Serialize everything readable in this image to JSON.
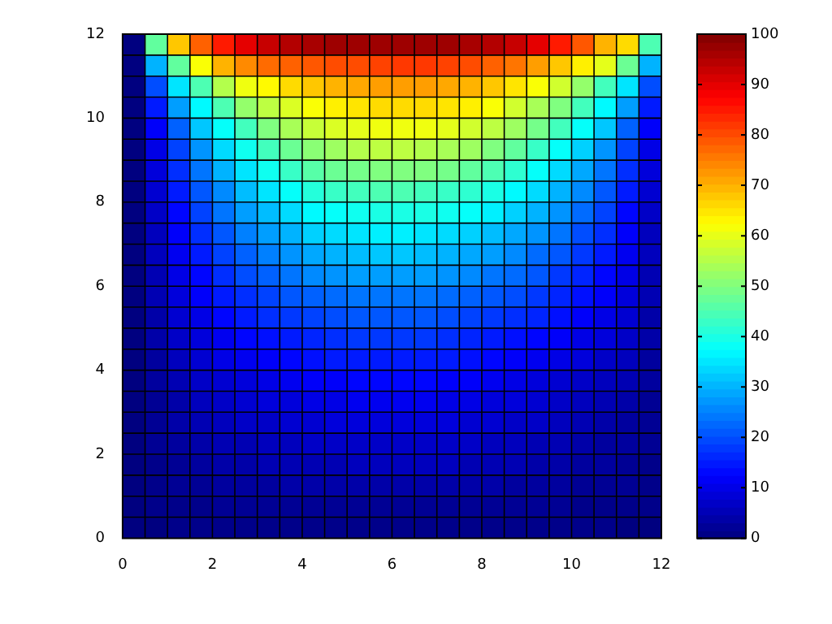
{
  "chart_data": {
    "type": "heatmap",
    "xlim": [
      0,
      12
    ],
    "xticks": [
      0,
      2,
      4,
      6,
      8,
      10,
      12
    ],
    "ylim": [
      0,
      12
    ],
    "yticks": [
      0,
      2,
      4,
      6,
      8,
      10,
      12
    ],
    "grid": true,
    "clim": [
      0,
      100
    ],
    "cticks": [
      0,
      10,
      20,
      30,
      40,
      50,
      60,
      70,
      80,
      90,
      100
    ],
    "cells": [
      [
        0,
        47,
        68,
        78,
        85,
        90,
        93,
        95,
        96,
        97,
        97,
        97,
        97,
        97,
        97,
        96,
        95,
        93,
        90,
        85,
        79,
        70,
        66,
        45
      ],
      [
        0,
        30,
        47,
        62,
        70,
        74,
        77,
        78,
        79,
        80,
        80,
        81,
        82,
        82,
        81,
        80,
        78,
        76,
        72,
        68,
        64,
        60,
        48,
        30
      ],
      [
        0,
        20,
        35,
        45,
        55,
        61,
        63,
        66,
        68,
        70,
        71,
        72,
        72,
        72,
        71,
        70,
        68,
        65,
        62,
        58,
        52,
        44,
        35,
        20
      ],
      [
        0,
        15,
        28,
        37,
        45,
        52,
        56,
        59,
        62,
        64,
        65,
        66,
        66,
        66,
        65,
        64,
        62,
        58,
        54,
        50,
        44,
        37,
        28,
        15
      ],
      [
        0,
        12,
        22,
        32,
        38,
        44,
        50,
        54,
        57,
        59,
        60,
        61,
        61,
        61,
        60,
        58,
        56,
        53,
        49,
        44,
        38,
        32,
        22,
        12
      ],
      [
        0,
        10,
        19,
        27,
        34,
        39,
        44,
        48,
        51,
        53,
        55,
        56,
        56,
        55,
        54,
        53,
        50,
        47,
        43,
        38,
        33,
        27,
        19,
        10
      ],
      [
        0,
        9,
        17,
        24,
        30,
        35,
        39,
        43,
        46,
        48,
        49,
        50,
        50,
        50,
        49,
        47,
        45,
        42,
        38,
        34,
        29,
        24,
        17,
        9
      ],
      [
        0,
        8,
        15,
        21,
        26,
        31,
        35,
        38,
        41,
        43,
        44,
        45,
        45,
        44,
        43,
        42,
        40,
        37,
        34,
        30,
        26,
        21,
        15,
        8
      ],
      [
        0,
        7,
        13,
        19,
        24,
        28,
        31,
        34,
        37,
        38,
        39,
        40,
        40,
        40,
        39,
        38,
        36,
        33,
        30,
        27,
        23,
        19,
        13,
        7
      ],
      [
        0,
        6,
        12,
        17,
        21,
        25,
        28,
        30,
        33,
        34,
        35,
        36,
        36,
        35,
        34,
        33,
        31,
        29,
        27,
        24,
        20,
        17,
        12,
        6
      ],
      [
        0,
        6,
        11,
        15,
        19,
        22,
        25,
        27,
        29,
        30,
        31,
        32,
        32,
        31,
        30,
        29,
        28,
        26,
        23,
        21,
        18,
        15,
        11,
        6
      ],
      [
        0,
        5,
        10,
        13,
        17,
        20,
        22,
        24,
        26,
        27,
        28,
        28,
        28,
        28,
        27,
        26,
        24,
        23,
        21,
        18,
        16,
        13,
        10,
        5
      ],
      [
        0,
        5,
        9,
        12,
        15,
        17,
        19,
        21,
        22,
        23,
        24,
        24,
        24,
        24,
        23,
        22,
        21,
        20,
        18,
        16,
        14,
        12,
        9,
        5
      ],
      [
        0,
        4,
        8,
        10,
        13,
        15,
        17,
        18,
        19,
        20,
        21,
        21,
        21,
        21,
        20,
        19,
        18,
        17,
        16,
        14,
        12,
        10,
        8,
        4
      ],
      [
        0,
        4,
        7,
        9,
        11,
        13,
        14,
        15,
        16,
        17,
        18,
        18,
        18,
        18,
        17,
        16,
        15,
        14,
        13,
        12,
        10,
        9,
        7,
        4
      ],
      [
        0,
        3,
        6,
        8,
        10,
        11,
        12,
        13,
        14,
        15,
        15,
        15,
        15,
        15,
        15,
        14,
        13,
        12,
        11,
        10,
        9,
        7,
        6,
        3
      ],
      [
        0,
        3,
        5,
        7,
        8,
        9,
        10,
        11,
        12,
        12,
        13,
        13,
        13,
        13,
        12,
        12,
        11,
        10,
        9,
        8,
        7,
        6,
        5,
        3
      ],
      [
        0,
        2,
        4,
        6,
        7,
        8,
        9,
        9,
        10,
        10,
        11,
        11,
        11,
        11,
        10,
        10,
        9,
        9,
        8,
        7,
        6,
        5,
        4,
        2
      ],
      [
        0,
        2,
        4,
        5,
        6,
        7,
        7,
        8,
        8,
        9,
        9,
        9,
        9,
        9,
        9,
        8,
        8,
        7,
        7,
        6,
        5,
        4,
        3,
        2
      ],
      [
        0,
        2,
        3,
        4,
        5,
        5,
        6,
        6,
        7,
        7,
        7,
        7,
        7,
        7,
        7,
        7,
        6,
        6,
        5,
        5,
        4,
        3,
        3,
        2
      ],
      [
        0,
        1,
        2,
        3,
        4,
        4,
        5,
        5,
        5,
        5,
        6,
        6,
        6,
        6,
        6,
        5,
        5,
        5,
        4,
        4,
        3,
        3,
        2,
        1
      ],
      [
        0,
        1,
        2,
        2,
        3,
        3,
        3,
        4,
        4,
        4,
        4,
        4,
        4,
        4,
        4,
        4,
        4,
        3,
        3,
        3,
        2,
        2,
        2,
        1
      ],
      [
        0,
        1,
        1,
        1,
        2,
        2,
        2,
        2,
        2,
        2,
        2,
        2,
        2,
        2,
        2,
        2,
        2,
        2,
        2,
        2,
        1,
        1,
        1,
        1
      ],
      [
        0,
        0,
        1,
        1,
        1,
        1,
        1,
        1,
        1,
        1,
        1,
        1,
        1,
        1,
        1,
        1,
        1,
        1,
        1,
        1,
        1,
        1,
        0,
        0
      ]
    ]
  }
}
